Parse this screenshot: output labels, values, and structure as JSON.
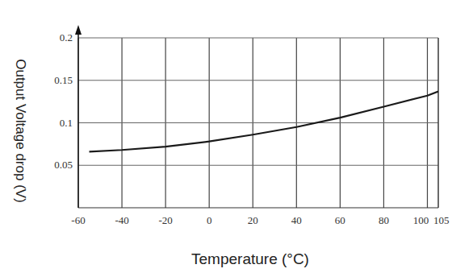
{
  "chart_data": {
    "type": "line",
    "x_label": "Temperature (°C)",
    "y_label": "Output Voltage drop (V)",
    "x": [
      -55,
      -40,
      -20,
      0,
      20,
      40,
      60,
      80,
      100,
      105
    ],
    "values": [
      0.066,
      0.068,
      0.072,
      0.078,
      0.086,
      0.095,
      0.106,
      0.119,
      0.132,
      0.137
    ],
    "color": "#1a1a1a",
    "xlim": [
      -60,
      105
    ],
    "xticks": [
      -60,
      -40,
      -20,
      0,
      20,
      40,
      60,
      80,
      100,
      105
    ],
    "ylim": [
      0,
      0.2
    ],
    "yticks": [
      0.05,
      0.1,
      0.15,
      0.2
    ],
    "grid": true
  }
}
